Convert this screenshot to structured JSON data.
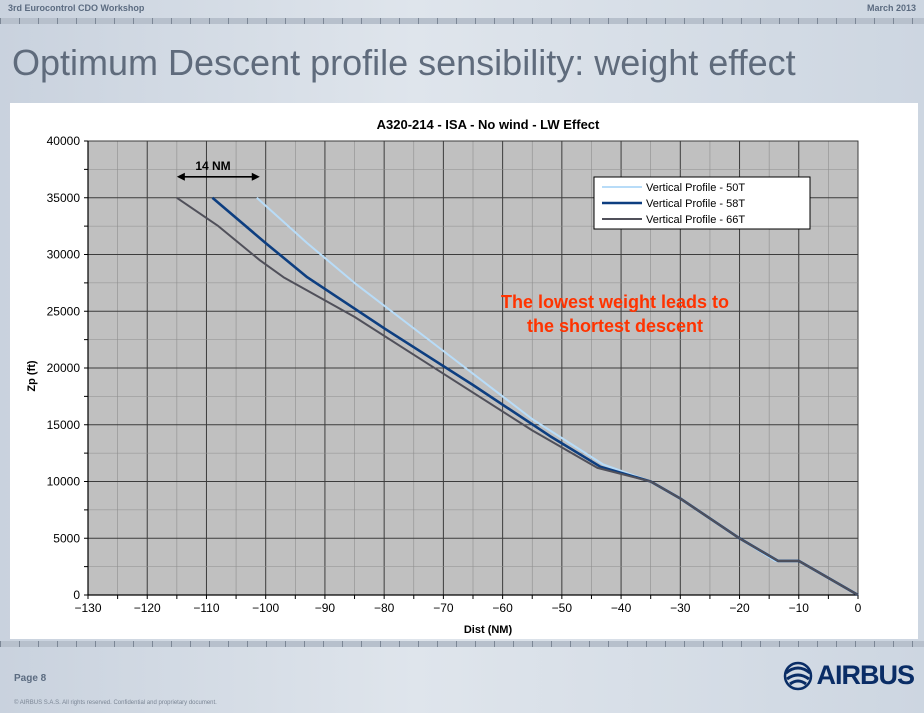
{
  "header": {
    "event": "3rd Eurocontrol CDO Workshop",
    "date": "March 2013"
  },
  "slide": {
    "title": "Optimum Descent profile sensibility: weight effect"
  },
  "footer": {
    "page": "Page 8",
    "copyright": "© AIRBUS S.A.S. All rights reserved. Confidential and proprietary document.",
    "logo_text": "AIRBUS"
  },
  "colors": {
    "plot_bg": "#c0c0c0",
    "grid": "#3c3c3c",
    "annotation": "#ff3300",
    "logo": "#0a2d66"
  },
  "chart_data": {
    "type": "line",
    "title": "A320-214  - ISA - No wind - LW Effect",
    "xlabel": "Dist (NM)",
    "ylabel": "Zp (ft)",
    "xlim": [
      -130,
      0
    ],
    "ylim": [
      0,
      40000
    ],
    "x_ticks": [
      -130,
      -120,
      -110,
      -100,
      -90,
      -80,
      -70,
      -60,
      -50,
      -40,
      -30,
      -20,
      -10,
      0
    ],
    "y_ticks": [
      0,
      5000,
      10000,
      15000,
      20000,
      25000,
      30000,
      35000,
      40000
    ],
    "grid": true,
    "legend_position": "top-right",
    "series": [
      {
        "name": "Vertical Profile - 50T",
        "color": "#b8dcf8",
        "points": [
          [
            -101.5,
            35000
          ],
          [
            -93,
            31000
          ],
          [
            -85,
            27500
          ],
          [
            -70,
            21500
          ],
          [
            -55,
            15500
          ],
          [
            -43,
            11500
          ],
          [
            -35,
            10000
          ],
          [
            -30,
            8500
          ],
          [
            -20,
            5000
          ],
          [
            -14,
            3000
          ],
          [
            -10,
            3000
          ],
          [
            0,
            0
          ]
        ]
      },
      {
        "name": "Vertical Profile - 58T",
        "color": "#0d3e80",
        "points": [
          [
            -109,
            35000
          ],
          [
            -100,
            31000
          ],
          [
            -93,
            28000
          ],
          [
            -80,
            23500
          ],
          [
            -65,
            18500
          ],
          [
            -52,
            14000
          ],
          [
            -43.5,
            11300
          ],
          [
            -35,
            10000
          ],
          [
            -30,
            8500
          ],
          [
            -20,
            5000
          ],
          [
            -13.5,
            3000
          ],
          [
            -10,
            3000
          ],
          [
            0,
            0
          ]
        ]
      },
      {
        "name": "Vertical Profile - 66T",
        "color": "#50505a",
        "points": [
          [
            -115,
            35000
          ],
          [
            -108,
            32500
          ],
          [
            -101,
            29500
          ],
          [
            -97,
            28000
          ],
          [
            -85,
            24500
          ],
          [
            -70,
            19500
          ],
          [
            -55,
            14500
          ],
          [
            -44,
            11200
          ],
          [
            -35,
            10000
          ],
          [
            -30,
            8500
          ],
          [
            -20,
            5000
          ],
          [
            -13.5,
            3000
          ],
          [
            -10,
            3000
          ],
          [
            0,
            0
          ]
        ]
      }
    ],
    "annotations": {
      "distance_label": "14 NM",
      "distance_span": [
        -115,
        -101
      ],
      "distance_y": 35700,
      "message_line1": "The lowest weight leads to",
      "message_line2": "the shortest descent"
    }
  }
}
